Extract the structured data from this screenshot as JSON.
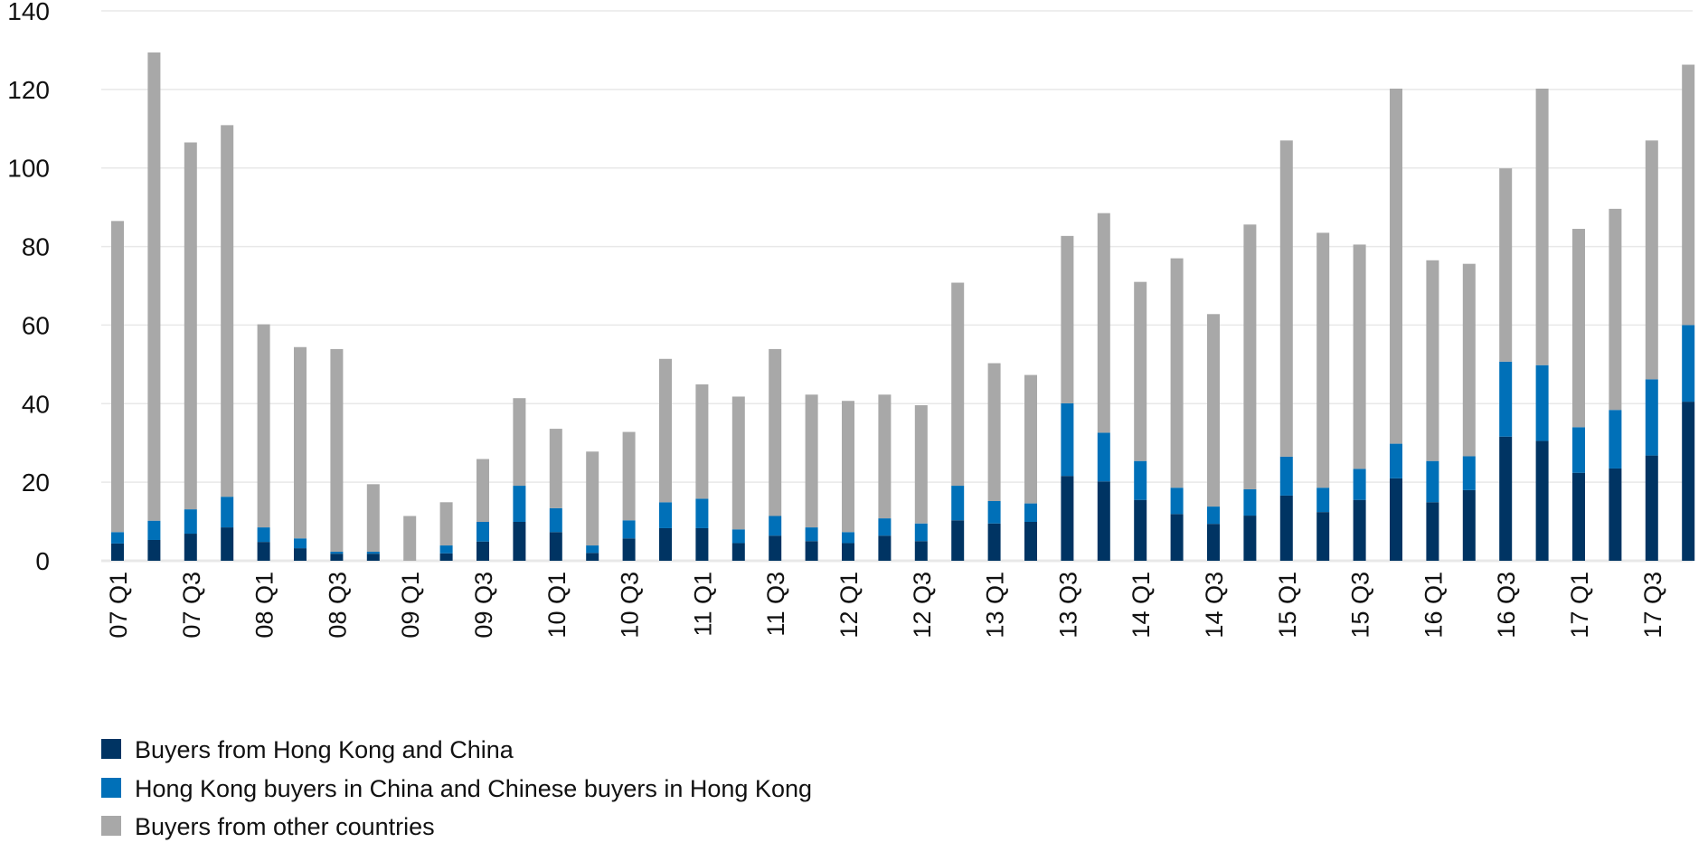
{
  "chart_data": {
    "type": "bar",
    "stacked": true,
    "title": "",
    "xlabel": "",
    "ylabel": "",
    "ylim": [
      0,
      140
    ],
    "yticks": [
      0,
      20,
      40,
      60,
      80,
      100,
      120,
      140
    ],
    "grid": true,
    "legend_placement": "bottom-left",
    "categories": [
      "07 Q1",
      "07 Q2",
      "07 Q3",
      "07 Q4",
      "08 Q1",
      "08 Q2",
      "08 Q3",
      "08 Q4",
      "09 Q1",
      "09 Q2",
      "09 Q3",
      "09 Q4",
      "10 Q1",
      "10 Q2",
      "10 Q3",
      "10 Q4",
      "11 Q1",
      "11 Q2",
      "11 Q3",
      "11 Q4",
      "12 Q1",
      "12 Q2",
      "12 Q3",
      "12 Q4",
      "13 Q1",
      "13 Q2",
      "13 Q3",
      "13 Q4",
      "14 Q1",
      "14 Q2",
      "14 Q3",
      "14 Q4",
      "15 Q1",
      "15 Q2",
      "15 Q3",
      "15 Q4",
      "16 Q1",
      "16 Q2",
      "16 Q3",
      "16 Q4",
      "17 Q1",
      "17 Q2",
      "17 Q3",
      "17 Q4"
    ],
    "tick_labels_shown": [
      "07 Q1",
      "07 Q3",
      "08 Q1",
      "08 Q3",
      "09 Q1",
      "09 Q3",
      "10 Q1",
      "10 Q3",
      "11 Q1",
      "11 Q3",
      "12 Q1",
      "12 Q3",
      "13 Q1",
      "13 Q3",
      "14 Q1",
      "14 Q3",
      "15 Q1",
      "15 Q3",
      "16 Q1",
      "16 Q3",
      "17 Q1",
      "17 Q3"
    ],
    "series": [
      {
        "name": "Buyers from Hong Kong and China",
        "color": "#003463",
        "values": [
          4.4,
          5.3,
          6.9,
          8.5,
          4.8,
          3.2,
          1.8,
          1.8,
          0,
          1.9,
          4.9,
          9.9,
          7.3,
          2.0,
          5.7,
          8.3,
          8.3,
          4.5,
          6.4,
          5.0,
          4.5,
          6.4,
          5.0,
          10.3,
          9.5,
          9.9,
          21.6,
          20.2,
          15.5,
          11.9,
          9.4,
          11.5,
          16.6,
          12.4,
          15.5,
          21.0,
          14.9,
          18.0,
          31.6,
          30.5,
          22.4,
          23.5,
          26.8,
          40.5
        ]
      },
      {
        "name": "Hong Kong buyers in China and Chinese buyers in Hong Kong",
        "color": "#0070b8",
        "values": [
          2.9,
          4.9,
          6.2,
          7.8,
          3.7,
          2.5,
          0.5,
          0.5,
          0,
          2.0,
          5.0,
          9.2,
          6.1,
          1.9,
          4.6,
          6.6,
          7.5,
          3.5,
          5.0,
          3.5,
          2.8,
          4.4,
          4.5,
          8.8,
          5.7,
          4.7,
          18.5,
          12.4,
          9.9,
          6.7,
          4.4,
          6.7,
          9.9,
          6.2,
          7.9,
          8.8,
          10.5,
          8.6,
          19.1,
          19.3,
          11.6,
          14.9,
          19.4,
          19.5
        ]
      },
      {
        "name": "Buyers from other countries",
        "color": "#a8a8a8",
        "values": [
          79.2,
          119.2,
          93.4,
          94.6,
          51.7,
          48.7,
          51.6,
          17.2,
          11.4,
          11.0,
          16.0,
          22.3,
          20.2,
          23.9,
          22.5,
          36.5,
          29.1,
          33.8,
          42.5,
          33.8,
          33.4,
          31.5,
          30.1,
          51.7,
          35.1,
          32.7,
          42.6,
          55.9,
          45.6,
          58.4,
          49.0,
          67.4,
          80.5,
          64.9,
          57.1,
          90.4,
          51.1,
          49.0,
          49.2,
          70.4,
          50.5,
          51.2,
          60.8,
          66.3
        ]
      }
    ],
    "gridline_color": "#e8e8e8"
  }
}
